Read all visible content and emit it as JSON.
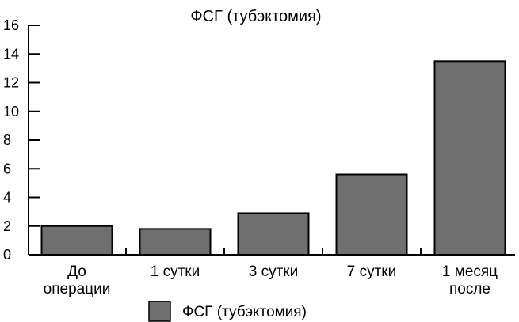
{
  "chart_data": {
    "type": "bar",
    "title": "ФСГ (тубэктомия)",
    "xlabel": "",
    "ylabel": "",
    "ylim": [
      0,
      16
    ],
    "yticks": [
      0,
      2,
      4,
      6,
      8,
      10,
      12,
      14,
      16
    ],
    "categories": [
      [
        "До",
        "операции"
      ],
      [
        "1 сутки"
      ],
      [
        "3 сутки"
      ],
      [
        "7 сутки"
      ],
      [
        "1 месяц",
        "после"
      ]
    ],
    "series": [
      {
        "name": "ФСГ (тубэктомия)",
        "values": [
          2.0,
          1.8,
          2.9,
          5.6,
          13.5
        ],
        "color": "#6f6f6f"
      }
    ],
    "grid": false,
    "legend_position": "bottom"
  }
}
